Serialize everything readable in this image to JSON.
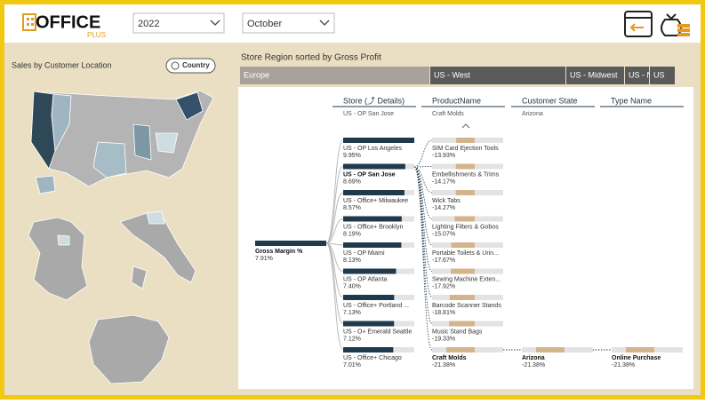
{
  "header": {
    "logo": "OFFICE",
    "logo_sub": "PLUS",
    "year": "2022",
    "month": "October"
  },
  "map": {
    "title": "Sales by Customer Location",
    "toggle": "Country"
  },
  "ribbon": {
    "title": "Store Region sorted by Gross Profit",
    "regions": [
      "Europe",
      "US - West",
      "US - Midwest",
      "US - N",
      "US"
    ]
  },
  "tree": {
    "headers": [
      {
        "name": "Store (⤴ Details)",
        "selected": "US - OP San Jose"
      },
      {
        "name": "ProductName",
        "selected": "Craft Molds"
      },
      {
        "name": "Customer State",
        "selected": "Arizona"
      },
      {
        "name": "Type Name"
      }
    ],
    "root": {
      "label": "Gross Margin %",
      "value": 7.91,
      "value_label": "7.91%"
    },
    "stores": [
      {
        "label": "US - OP Los Angeles",
        "value": 9.95,
        "value_label": "9.95%"
      },
      {
        "label": "US - OP San Jose",
        "value": 8.69,
        "value_label": "8.69%"
      },
      {
        "label": "US - Office+ Milwaukee",
        "value": 8.57,
        "value_label": "8.57%"
      },
      {
        "label": "US - Office+ Brooklyn",
        "value": 8.19,
        "value_label": "8.19%"
      },
      {
        "label": "US - OP Miami",
        "value": 8.13,
        "value_label": "8.13%"
      },
      {
        "label": "US - OP Atlanta",
        "value": 7.4,
        "value_label": "7.40%"
      },
      {
        "label": "US - Office+ Portland ...",
        "value": 7.13,
        "value_label": "7.13%"
      },
      {
        "label": "US - O+ Emerald Seattle",
        "value": 7.12,
        "value_label": "7.12%"
      },
      {
        "label": "US - Office+ Chicago",
        "value": 7.01,
        "value_label": "7.01%"
      }
    ],
    "products": [
      {
        "label": "SIM Card Ejection Tools",
        "value": -13.93,
        "value_label": "-13.93%"
      },
      {
        "label": "Embellishments & Trims",
        "value": -14.17,
        "value_label": "-14.17%"
      },
      {
        "label": "Wick Tabs",
        "value": -14.27,
        "value_label": "-14.27%"
      },
      {
        "label": "Lighting Filters & Gobos",
        "value": -15.07,
        "value_label": "-15.07%"
      },
      {
        "label": "Portable Toilets & Urin...",
        "value": -17.67,
        "value_label": "-17.67%"
      },
      {
        "label": "Sewing Machine Exten...",
        "value": -17.92,
        "value_label": "-17.92%"
      },
      {
        "label": "Barcode Scanner Stands",
        "value": -18.81,
        "value_label": "-18.81%"
      },
      {
        "label": "Music Stand Bags",
        "value": -19.33,
        "value_label": "-19.33%"
      },
      {
        "label": "Craft Molds",
        "value": -21.38,
        "value_label": "-21.38%"
      }
    ],
    "states": [
      {
        "label": "Arizona",
        "value": -21.38,
        "value_label": "-21.38%"
      }
    ],
    "types": [
      {
        "label": "Online Purchase",
        "value": -21.38,
        "value_label": "-21.38%"
      }
    ]
  }
}
